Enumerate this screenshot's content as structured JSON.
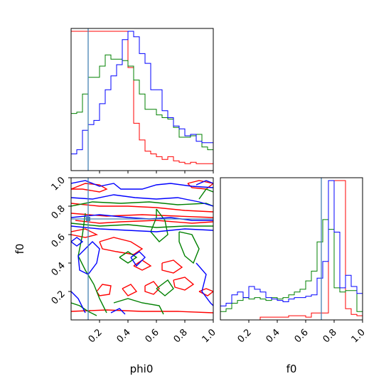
{
  "chart_data": {
    "type": "corner",
    "parameters": [
      "phi0",
      "f0"
    ],
    "xlabels": [
      "phi0",
      "f0"
    ],
    "ylabels": [
      "",
      "f0"
    ],
    "ticks": [
      "0.2",
      "0.4",
      "0.6",
      "0.8",
      "1.0"
    ],
    "range": [
      0,
      1
    ],
    "colors": {
      "red": "#ff0000",
      "green": "#008000",
      "blue": "#0000ff",
      "truth": "#4682b4"
    },
    "truths": {
      "phi0": 0.12,
      "f0": 0.71
    },
    "bin_edges": [
      0.0,
      0.04,
      0.08,
      0.12,
      0.16,
      0.2,
      0.24,
      0.28,
      0.32,
      0.36,
      0.4,
      0.44,
      0.48,
      0.52,
      0.56,
      0.6,
      0.64,
      0.68,
      0.72,
      0.76,
      0.8,
      0.84,
      0.88,
      0.92,
      0.96,
      1.0
    ],
    "phi0_hist": {
      "red": [
        1.0,
        1.0,
        1.0,
        1.0,
        1.0,
        1.0,
        1.0,
        1.0,
        1.0,
        1.0,
        0.74,
        0.34,
        0.22,
        0.14,
        0.12,
        0.1,
        0.08,
        0.1,
        0.07,
        0.06,
        0.05,
        0.06,
        0.05,
        0.05,
        0.05
      ],
      "green": [
        0.41,
        0.42,
        0.55,
        0.67,
        0.67,
        0.75,
        0.83,
        0.8,
        0.8,
        0.79,
        0.75,
        0.65,
        0.55,
        0.44,
        0.44,
        0.4,
        0.38,
        0.37,
        0.31,
        0.24,
        0.24,
        0.25,
        0.26,
        0.17,
        0.15
      ],
      "blue": [
        0.12,
        0.15,
        0.29,
        0.33,
        0.36,
        0.48,
        0.58,
        0.68,
        0.76,
        0.94,
        1.0,
        0.96,
        0.84,
        0.77,
        0.58,
        0.58,
        0.43,
        0.38,
        0.32,
        0.3,
        0.25,
        0.26,
        0.21,
        0.2,
        0.2
      ]
    },
    "f0_hist": {
      "red": [
        0.0,
        0.0,
        0.0,
        0.0,
        0.0,
        0.0,
        0.0,
        0.02,
        0.02,
        0.02,
        0.02,
        0.02,
        0.03,
        0.03,
        0.03,
        0.02,
        0.05,
        0.05,
        0.05,
        1.0,
        1.0,
        1.0,
        0.08,
        0.04,
        0.03
      ],
      "green": [
        0.06,
        0.08,
        0.12,
        0.14,
        0.16,
        0.15,
        0.16,
        0.15,
        0.14,
        0.16,
        0.15,
        0.16,
        0.18,
        0.2,
        0.22,
        0.28,
        0.35,
        0.56,
        0.72,
        0.65,
        0.23,
        0.2,
        0.21,
        0.21,
        0.06
      ],
      "blue": [
        0.1,
        0.12,
        0.18,
        0.2,
        0.16,
        0.24,
        0.22,
        0.2,
        0.16,
        0.15,
        0.14,
        0.13,
        0.15,
        0.16,
        0.16,
        0.17,
        0.18,
        0.3,
        0.42,
        1.0,
        0.63,
        0.23,
        0.32,
        0.24,
        0.19
      ]
    },
    "contours_2d": {
      "red": [
        [
          [
            0.0,
            0.82
          ],
          [
            0.2,
            0.8
          ],
          [
            0.4,
            0.8
          ],
          [
            0.6,
            0.79
          ],
          [
            0.8,
            0.77
          ],
          [
            1.0,
            0.76
          ]
        ],
        [
          [
            0.0,
            0.75
          ],
          [
            0.25,
            0.73
          ],
          [
            0.5,
            0.74
          ],
          [
            0.75,
            0.73
          ],
          [
            1.0,
            0.72
          ]
        ],
        [
          [
            0.03,
            0.7
          ],
          [
            0.2,
            0.68
          ],
          [
            0.35,
            0.69
          ],
          [
            0.6,
            0.7
          ],
          [
            0.85,
            0.68
          ],
          [
            1.0,
            0.69
          ]
        ],
        [
          [
            0.0,
            0.92
          ],
          [
            0.1,
            0.96
          ],
          [
            0.2,
            0.95
          ],
          [
            0.25,
            0.92
          ],
          [
            0.2,
            0.9
          ],
          [
            0.08,
            0.92
          ],
          [
            0.0,
            0.92
          ]
        ],
        [
          [
            0.82,
            0.96
          ],
          [
            0.9,
            0.98
          ],
          [
            1.0,
            0.96
          ],
          [
            0.95,
            0.92
          ],
          [
            0.85,
            0.93
          ],
          [
            0.82,
            0.96
          ]
        ],
        [
          [
            0.0,
            0.62
          ],
          [
            0.1,
            0.64
          ],
          [
            0.18,
            0.6
          ],
          [
            0.1,
            0.58
          ],
          [
            0.0,
            0.6
          ]
        ],
        [
          [
            0.2,
            0.55
          ],
          [
            0.3,
            0.58
          ],
          [
            0.42,
            0.55
          ],
          [
            0.5,
            0.5
          ],
          [
            0.44,
            0.46
          ],
          [
            0.32,
            0.48
          ],
          [
            0.22,
            0.5
          ],
          [
            0.2,
            0.55
          ]
        ],
        [
          [
            0.44,
            0.38
          ],
          [
            0.5,
            0.42
          ],
          [
            0.56,
            0.38
          ],
          [
            0.5,
            0.35
          ],
          [
            0.44,
            0.38
          ]
        ],
        [
          [
            0.64,
            0.4
          ],
          [
            0.72,
            0.42
          ],
          [
            0.78,
            0.37
          ],
          [
            0.72,
            0.33
          ],
          [
            0.64,
            0.35
          ],
          [
            0.64,
            0.4
          ]
        ],
        [
          [
            0.72,
            0.28
          ],
          [
            0.8,
            0.3
          ],
          [
            0.86,
            0.25
          ],
          [
            0.8,
            0.21
          ],
          [
            0.73,
            0.23
          ],
          [
            0.72,
            0.28
          ]
        ],
        [
          [
            0.18,
            0.2
          ],
          [
            0.22,
            0.25
          ],
          [
            0.28,
            0.24
          ],
          [
            0.27,
            0.18
          ],
          [
            0.2,
            0.17
          ],
          [
            0.18,
            0.2
          ]
        ],
        [
          [
            0.36,
            0.22
          ],
          [
            0.42,
            0.25
          ],
          [
            0.46,
            0.2
          ],
          [
            0.4,
            0.17
          ],
          [
            0.36,
            0.22
          ]
        ],
        [
          [
            0.52,
            0.24
          ],
          [
            0.58,
            0.27
          ],
          [
            0.62,
            0.22
          ],
          [
            0.58,
            0.18
          ],
          [
            0.52,
            0.2
          ],
          [
            0.52,
            0.24
          ]
        ],
        [
          [
            0.9,
            0.2
          ],
          [
            0.95,
            0.22
          ],
          [
            1.0,
            0.2
          ],
          [
            0.96,
            0.17
          ],
          [
            0.9,
            0.2
          ]
        ],
        [
          [
            0.0,
            0.06
          ],
          [
            0.25,
            0.07
          ],
          [
            0.5,
            0.06
          ],
          [
            0.75,
            0.06
          ],
          [
            1.0,
            0.05
          ]
        ]
      ],
      "green": [
        [
          [
            0.0,
            0.8
          ],
          [
            0.15,
            0.83
          ],
          [
            0.35,
            0.82
          ],
          [
            0.55,
            0.83
          ],
          [
            0.75,
            0.81
          ],
          [
            0.95,
            0.82
          ],
          [
            1.0,
            0.8
          ]
        ],
        [
          [
            0.0,
            0.68
          ],
          [
            0.2,
            0.66
          ],
          [
            0.4,
            0.67
          ],
          [
            0.6,
            0.65
          ],
          [
            0.8,
            0.66
          ],
          [
            1.0,
            0.66
          ]
        ],
        [
          [
            0.6,
            0.78
          ],
          [
            0.66,
            0.7
          ],
          [
            0.68,
            0.6
          ],
          [
            0.62,
            0.55
          ],
          [
            0.56,
            0.62
          ],
          [
            0.6,
            0.72
          ],
          [
            0.6,
            0.78
          ]
        ],
        [
          [
            0.1,
            0.75
          ],
          [
            0.08,
            0.6
          ],
          [
            0.05,
            0.45
          ],
          [
            0.1,
            0.35
          ],
          [
            0.16,
            0.25
          ],
          [
            0.2,
            0.15
          ],
          [
            0.25,
            0.05
          ]
        ],
        [
          [
            0.34,
            0.44
          ],
          [
            0.4,
            0.48
          ],
          [
            0.46,
            0.44
          ],
          [
            0.4,
            0.4
          ],
          [
            0.34,
            0.44
          ]
        ],
        [
          [
            0.76,
            0.62
          ],
          [
            0.85,
            0.6
          ],
          [
            0.9,
            0.5
          ],
          [
            0.86,
            0.4
          ],
          [
            0.8,
            0.45
          ],
          [
            0.76,
            0.55
          ],
          [
            0.76,
            0.62
          ]
        ],
        [
          [
            0.3,
            0.12
          ],
          [
            0.4,
            0.15
          ],
          [
            0.5,
            0.12
          ],
          [
            0.62,
            0.1
          ],
          [
            0.65,
            0.04
          ]
        ],
        [
          [
            0.6,
            0.22
          ],
          [
            0.68,
            0.28
          ],
          [
            0.72,
            0.22
          ],
          [
            0.66,
            0.17
          ],
          [
            0.6,
            0.22
          ]
        ],
        [
          [
            0.9,
            0.85
          ],
          [
            0.95,
            0.92
          ],
          [
            1.0,
            0.9
          ]
        ],
        [
          [
            0.0,
            0.12
          ],
          [
            0.06,
            0.1
          ],
          [
            0.12,
            0.06
          ],
          [
            0.18,
            0.03
          ]
        ]
      ],
      "blue": [
        [
          [
            0.0,
            0.96
          ],
          [
            0.1,
            0.98
          ],
          [
            0.2,
            0.94
          ],
          [
            0.3,
            0.96
          ],
          [
            0.35,
            0.92
          ],
          [
            0.5,
            0.92
          ],
          [
            0.6,
            0.95
          ],
          [
            0.7,
            0.96
          ],
          [
            0.85,
            0.94
          ],
          [
            1.0,
            0.93
          ]
        ],
        [
          [
            0.0,
            0.86
          ],
          [
            0.15,
            0.85
          ],
          [
            0.3,
            0.88
          ],
          [
            0.45,
            0.86
          ],
          [
            0.6,
            0.85
          ],
          [
            0.75,
            0.86
          ],
          [
            0.9,
            0.83
          ],
          [
            1.0,
            0.8
          ]
        ],
        [
          [
            0.0,
            0.72
          ],
          [
            0.2,
            0.74
          ],
          [
            0.4,
            0.72
          ],
          [
            0.55,
            0.71
          ],
          [
            0.7,
            0.72
          ],
          [
            0.85,
            0.7
          ],
          [
            1.0,
            0.7
          ]
        ],
        [
          [
            0.0,
            0.66
          ],
          [
            0.2,
            0.64
          ],
          [
            0.4,
            0.63
          ],
          [
            0.6,
            0.62
          ],
          [
            0.8,
            0.64
          ],
          [
            1.0,
            0.63
          ]
        ],
        [
          [
            0.05,
            0.45
          ],
          [
            0.1,
            0.5
          ],
          [
            0.15,
            0.55
          ],
          [
            0.2,
            0.5
          ],
          [
            0.18,
            0.4
          ],
          [
            0.12,
            0.32
          ],
          [
            0.06,
            0.35
          ],
          [
            0.05,
            0.45
          ]
        ],
        [
          [
            0.42,
            0.44
          ],
          [
            0.48,
            0.48
          ],
          [
            0.52,
            0.44
          ],
          [
            0.46,
            0.38
          ],
          [
            0.42,
            0.44
          ]
        ],
        [
          [
            0.88,
            0.95
          ],
          [
            0.95,
            0.98
          ],
          [
            1.0,
            0.96
          ]
        ],
        [
          [
            0.88,
            0.4
          ],
          [
            0.95,
            0.32
          ],
          [
            0.92,
            0.2
          ],
          [
            0.98,
            0.12
          ],
          [
            1.0,
            0.1
          ]
        ],
        [
          [
            0.0,
            0.2
          ],
          [
            0.05,
            0.15
          ],
          [
            0.1,
            0.05
          ]
        ],
        [
          [
            0.28,
            0.05
          ],
          [
            0.34,
            0.08
          ],
          [
            0.38,
            0.04
          ]
        ],
        [
          [
            0.0,
            0.55
          ],
          [
            0.04,
            0.58
          ],
          [
            0.08,
            0.55
          ],
          [
            0.04,
            0.52
          ],
          [
            0.0,
            0.55
          ]
        ]
      ]
    }
  }
}
